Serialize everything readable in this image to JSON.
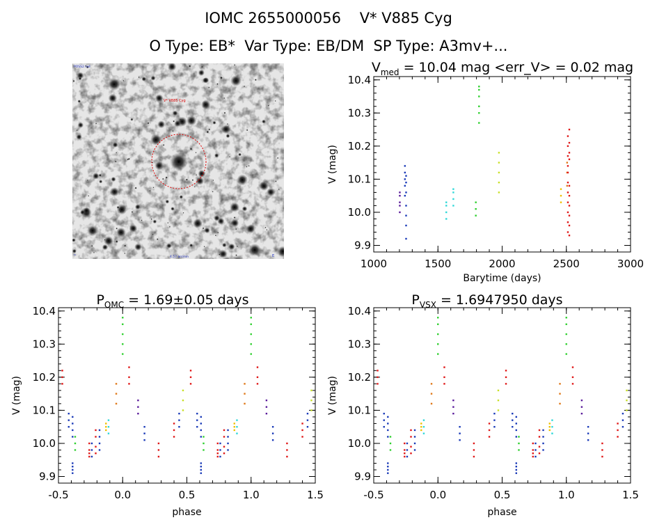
{
  "header": {
    "title": "IOMC 2655000056    V* V885 Cyg",
    "subtitle": "O Type: EB*  Var Type: EB/DM  SP Type: A3mv+..."
  },
  "finder": {
    "target_label": "V* V885 Cyg",
    "top_left_label": "POSS2 red",
    "bottom_label": "4.57 arcmin"
  },
  "colors": {
    "purple": "#5a1a9a",
    "blue": "#1a3ab8",
    "cyan": "#30d8d8",
    "green": "#30d030",
    "yellowgreen": "#c8e028",
    "yellow": "#f0c000",
    "orange": "#e07818",
    "red": "#e01818"
  },
  "chart_data": [
    {
      "type": "scatter",
      "title_prefix": "V",
      "title_sub": "med",
      "title_rest": " = 10.04 mag <err_V> = 0.02 mag",
      "xlabel": "Barytime (days)",
      "ylabel": "V (mag)",
      "xlim": [
        1000,
        3000
      ],
      "ylim": [
        10.41,
        9.88
      ],
      "x_ticks": [
        1000,
        1500,
        2000,
        2500,
        3000
      ],
      "y_ticks": [
        9.9,
        10.0,
        10.1,
        10.2,
        10.3,
        10.4
      ],
      "y_tick_labels": [
        "9.9",
        "10.0",
        "10.1",
        "10.2",
        "10.3",
        "10.4"
      ],
      "series": [
        {
          "color": "purple",
          "x": 1203,
          "y": [
            10.0,
            10.02,
            10.03,
            10.05,
            10.06
          ]
        },
        {
          "color": "blue",
          "x": 1243,
          "y": [
            10.05,
            10.08,
            10.1,
            10.12,
            10.14
          ]
        },
        {
          "color": "blue",
          "x": 1252,
          "y": [
            9.92,
            9.96,
            9.99,
            10.02,
            10.06,
            10.09,
            10.11
          ]
        },
        {
          "color": "cyan",
          "x": 1565,
          "y": [
            9.98,
            10.0,
            10.02,
            10.03
          ]
        },
        {
          "color": "cyan",
          "x": 1620,
          "y": [
            10.02,
            10.04,
            10.06,
            10.07
          ]
        },
        {
          "color": "green",
          "x": 1795,
          "y": [
            9.99,
            10.01,
            10.03
          ]
        },
        {
          "color": "green",
          "x": 1820,
          "y": [
            10.27,
            10.3,
            10.32,
            10.35,
            10.37,
            10.38
          ]
        },
        {
          "color": "yellowgreen",
          "x": 1975,
          "y": [
            10.06,
            10.09,
            10.12,
            10.15,
            10.18
          ]
        },
        {
          "color": "yellow",
          "x": 2458,
          "y": [
            10.03,
            10.05,
            10.07
          ]
        },
        {
          "color": "orange",
          "x": 2506,
          "y": [
            10.08,
            10.12,
            10.15
          ]
        },
        {
          "color": "red",
          "x": 2512,
          "y": [
            9.94,
            9.97,
            10.0,
            10.03,
            10.06,
            10.09,
            10.12,
            10.14,
            10.17,
            10.2,
            10.23
          ]
        },
        {
          "color": "red",
          "x": 2523,
          "y": [
            9.93,
            9.96,
            9.99,
            10.02,
            10.05,
            10.08,
            10.16,
            10.18,
            10.21,
            10.25
          ]
        }
      ]
    },
    {
      "type": "scatter",
      "title_prefix": "P",
      "title_sub": "OMC",
      "title_rest": " = 1.69±0.05 days",
      "xlabel": "phase",
      "ylabel": "V (mag)",
      "xlim": [
        -0.5,
        1.5
      ],
      "ylim": [
        10.41,
        9.88
      ],
      "x_ticks": [
        -0.5,
        0.0,
        0.5,
        1.0,
        1.5
      ],
      "x_tick_labels": [
        "-0.5",
        "0.0",
        "0.5",
        "1.0",
        "1.5"
      ],
      "y_ticks": [
        9.9,
        10.0,
        10.1,
        10.2,
        10.3,
        10.4
      ],
      "y_tick_labels": [
        "9.9",
        "10.0",
        "10.1",
        "10.2",
        "10.3",
        "10.4"
      ],
      "phase_series": [
        {
          "color": "blue",
          "phase": -0.39,
          "y": [
            9.91,
            9.93,
            10.02,
            10.04,
            10.06,
            10.08
          ]
        },
        {
          "color": "green",
          "phase": -0.37,
          "y": [
            9.98,
            10.0,
            10.02
          ]
        },
        {
          "color": "red",
          "phase": -0.26,
          "y": [
            9.96,
            9.97,
            9.98,
            10.0
          ]
        },
        {
          "color": "blue",
          "phase": -0.24,
          "y": [
            9.96,
            9.98,
            10.0
          ]
        },
        {
          "color": "blue",
          "phase": -0.18,
          "y": [
            9.98,
            10.0,
            10.02,
            10.04
          ]
        },
        {
          "color": "red",
          "phase": -0.21,
          "y": [
            9.97,
            9.99,
            10.02,
            10.04
          ]
        },
        {
          "color": "yellow",
          "phase": -0.13,
          "y": [
            10.04,
            10.05,
            10.06
          ]
        },
        {
          "color": "cyan",
          "phase": -0.11,
          "y": [
            10.03,
            10.05,
            10.07
          ]
        },
        {
          "color": "orange",
          "phase": -0.05,
          "y": [
            10.12,
            10.15,
            10.18
          ]
        },
        {
          "color": "green",
          "phase": 0.0,
          "y": [
            10.27,
            10.3,
            10.33,
            10.36,
            10.38
          ]
        },
        {
          "color": "red",
          "phase": 0.05,
          "y": [
            10.18,
            10.2,
            10.23
          ]
        },
        {
          "color": "purple",
          "phase": 0.12,
          "y": [
            10.09,
            10.11,
            10.13
          ]
        },
        {
          "color": "blue",
          "phase": 0.17,
          "y": [
            10.01,
            10.03,
            10.05
          ]
        },
        {
          "color": "red",
          "phase": 0.28,
          "y": [
            9.96,
            9.98,
            10.0
          ]
        },
        {
          "color": "red",
          "phase": 0.4,
          "y": [
            10.02,
            10.04,
            10.06
          ]
        },
        {
          "color": "blue",
          "phase": 0.44,
          "y": [
            10.05,
            10.07,
            10.09
          ]
        },
        {
          "color": "yellowgreen",
          "phase": 0.47,
          "y": [
            10.1,
            10.13,
            10.16
          ]
        },
        {
          "color": "red",
          "phase": 0.53,
          "y": [
            10.18,
            10.2,
            10.22
          ]
        },
        {
          "color": "blue",
          "phase": 0.58,
          "y": [
            10.05,
            10.07,
            10.09
          ]
        },
        {
          "color": "blue",
          "phase": 0.61,
          "y": [
            9.92,
            9.94
          ]
        }
      ]
    },
    {
      "type": "scatter",
      "title_prefix": "P",
      "title_sub": "VSX",
      "title_rest": " = 1.6947950 days",
      "xlabel": "phase",
      "ylabel": "V (mag)",
      "xlim": [
        -0.5,
        1.5
      ],
      "ylim": [
        10.41,
        9.88
      ],
      "x_ticks": [
        -0.5,
        0.0,
        0.5,
        1.0,
        1.5
      ],
      "x_tick_labels": [
        "-0.5",
        "0.0",
        "0.5",
        "1.0",
        "1.5"
      ],
      "y_ticks": [
        9.9,
        10.0,
        10.1,
        10.2,
        10.3,
        10.4
      ],
      "y_tick_labels": [
        "9.9",
        "10.0",
        "10.1",
        "10.2",
        "10.3",
        "10.4"
      ],
      "phase_series": [
        {
          "color": "blue",
          "phase": -0.39,
          "y": [
            9.91,
            9.93,
            10.02,
            10.04,
            10.06,
            10.08
          ]
        },
        {
          "color": "green",
          "phase": -0.37,
          "y": [
            9.98,
            10.0,
            10.02
          ]
        },
        {
          "color": "red",
          "phase": -0.26,
          "y": [
            9.96,
            9.97,
            9.98,
            10.0
          ]
        },
        {
          "color": "blue",
          "phase": -0.24,
          "y": [
            9.96,
            9.98,
            10.0
          ]
        },
        {
          "color": "blue",
          "phase": -0.18,
          "y": [
            9.98,
            10.0,
            10.02,
            10.04
          ]
        },
        {
          "color": "red",
          "phase": -0.21,
          "y": [
            9.97,
            9.99,
            10.02,
            10.04
          ]
        },
        {
          "color": "yellow",
          "phase": -0.13,
          "y": [
            10.04,
            10.05,
            10.06
          ]
        },
        {
          "color": "cyan",
          "phase": -0.11,
          "y": [
            10.03,
            10.05,
            10.07
          ]
        },
        {
          "color": "orange",
          "phase": -0.05,
          "y": [
            10.12,
            10.15,
            10.18
          ]
        },
        {
          "color": "green",
          "phase": 0.0,
          "y": [
            10.27,
            10.3,
            10.33,
            10.36,
            10.38
          ]
        },
        {
          "color": "red",
          "phase": 0.05,
          "y": [
            10.18,
            10.2,
            10.23
          ]
        },
        {
          "color": "purple",
          "phase": 0.12,
          "y": [
            10.09,
            10.11,
            10.13
          ]
        },
        {
          "color": "blue",
          "phase": 0.17,
          "y": [
            10.01,
            10.03,
            10.05
          ]
        },
        {
          "color": "red",
          "phase": 0.28,
          "y": [
            9.96,
            9.98,
            10.0
          ]
        },
        {
          "color": "red",
          "phase": 0.4,
          "y": [
            10.02,
            10.04,
            10.06
          ]
        },
        {
          "color": "blue",
          "phase": 0.44,
          "y": [
            10.05,
            10.07,
            10.09
          ]
        },
        {
          "color": "yellowgreen",
          "phase": 0.47,
          "y": [
            10.1,
            10.13,
            10.16
          ]
        },
        {
          "color": "red",
          "phase": 0.53,
          "y": [
            10.18,
            10.2,
            10.22
          ]
        },
        {
          "color": "blue",
          "phase": 0.58,
          "y": [
            10.05,
            10.07,
            10.09
          ]
        },
        {
          "color": "blue",
          "phase": 0.61,
          "y": [
            9.92,
            9.94
          ]
        }
      ]
    }
  ]
}
